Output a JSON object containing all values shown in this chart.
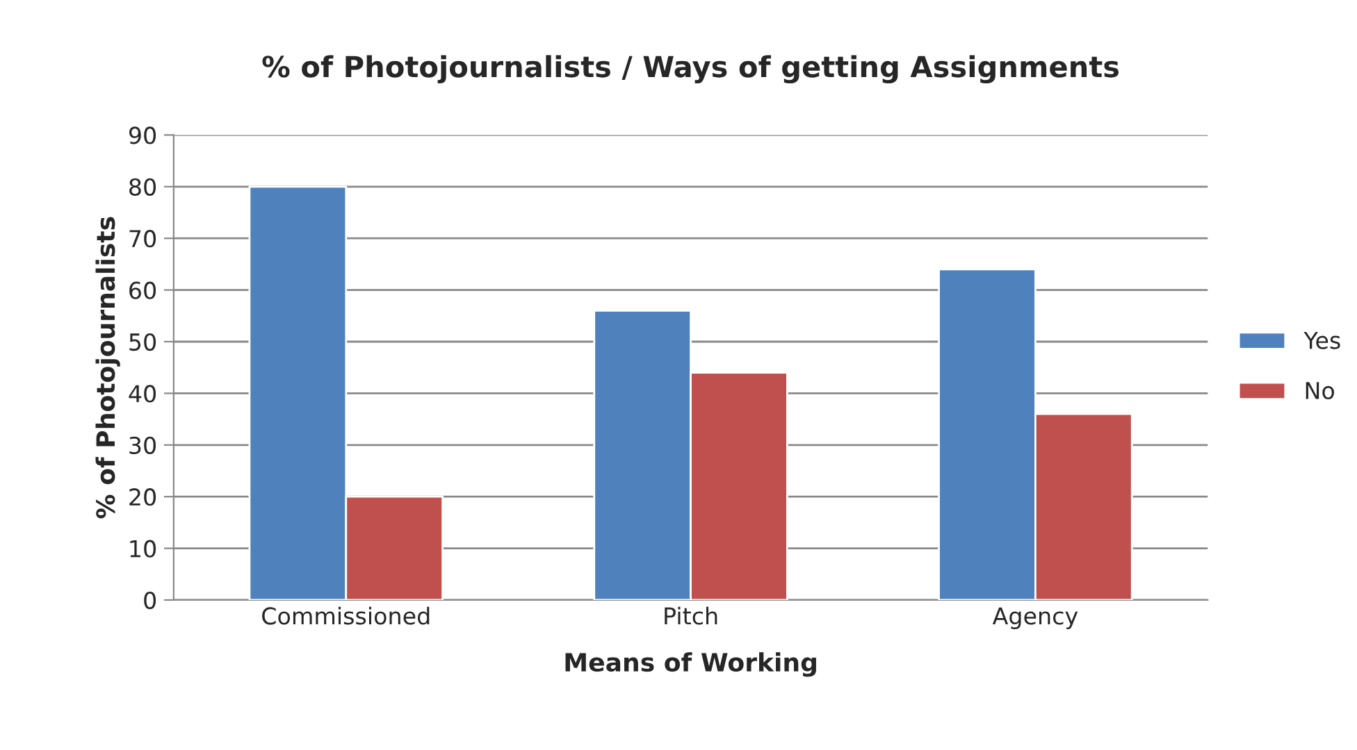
{
  "chart_data": {
    "type": "bar",
    "title": "% of Photojournalists / Ways of getting Assignments",
    "xlabel": "Means of Working",
    "ylabel": "% of Photojournalists",
    "categories": [
      "Commissioned",
      "Pitch",
      "Agency"
    ],
    "series": [
      {
        "name": "Yes",
        "color": "#4f81bd",
        "values": [
          80,
          56,
          64
        ]
      },
      {
        "name": "No",
        "color": "#c0504d",
        "values": [
          20,
          44,
          36
        ]
      }
    ],
    "ylim": [
      0,
      90
    ],
    "yticks": [
      0,
      10,
      20,
      30,
      40,
      50,
      60,
      70,
      80,
      90
    ],
    "grid": "y",
    "legend": "right"
  }
}
